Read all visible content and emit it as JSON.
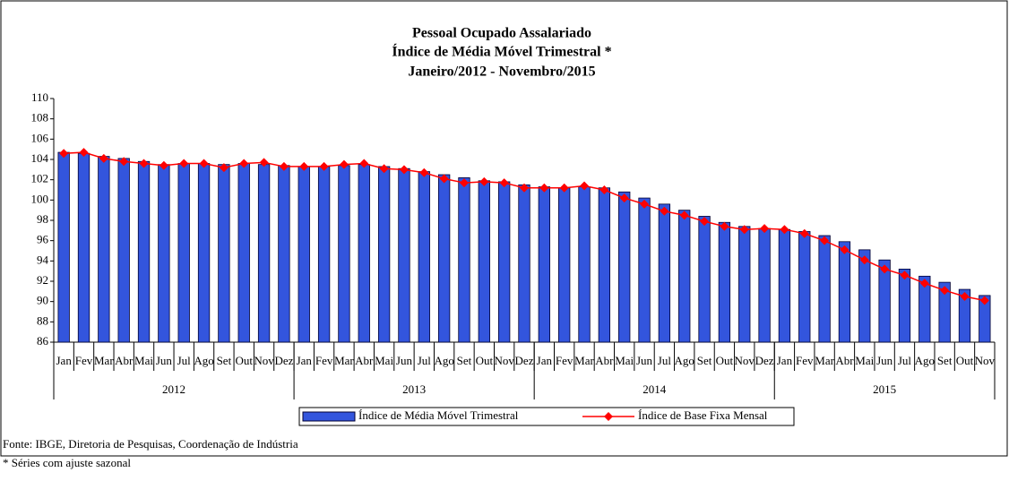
{
  "chart_data": {
    "type": "bar-line",
    "title": [
      "Pessoal Ocupado Assalariado",
      "Índice de Média Móvel Trimestral *",
      "Janeiro/2012 - Novembro/2015"
    ],
    "categories": [
      "Jan",
      "Fev",
      "Mar",
      "Abr",
      "Mai",
      "Jun",
      "Jul",
      "Ago",
      "Set",
      "Out",
      "Nov",
      "Dez",
      "Jan",
      "Fev",
      "Mar",
      "Abr",
      "Mai",
      "Jun",
      "Jul",
      "Ago",
      "Set",
      "Out",
      "Nov",
      "Dez",
      "Jan",
      "Fev",
      "Mar",
      "Abr",
      "Mai",
      "Jun",
      "Jul",
      "Ago",
      "Set",
      "Out",
      "Nov",
      "Dez",
      "Jan",
      "Fev",
      "Mar",
      "Abr",
      "Mai",
      "Jun",
      "Jul",
      "Ago",
      "Set",
      "Out",
      "Nov"
    ],
    "years": [
      "2012",
      "2013",
      "2014",
      "2015"
    ],
    "series": [
      {
        "name": "Índice de Média Móvel Trimestral",
        "type": "bar",
        "color": "#3355dd",
        "values": [
          104.7,
          104.6,
          104.3,
          104.1,
          103.8,
          103.5,
          103.6,
          103.6,
          103.5,
          103.6,
          103.5,
          103.4,
          103.3,
          103.3,
          103.4,
          103.5,
          103.3,
          103.1,
          102.8,
          102.5,
          102.2,
          101.9,
          101.8,
          101.5,
          101.3,
          101.2,
          101.3,
          101.2,
          100.8,
          100.2,
          99.6,
          99.0,
          98.4,
          97.8,
          97.4,
          97.2,
          97.1,
          96.9,
          96.5,
          95.9,
          95.1,
          94.1,
          93.2,
          92.5,
          91.9,
          91.2,
          90.6
        ]
      },
      {
        "name": "Índice de Base Fixa Mensal",
        "type": "line",
        "color": "#ff0000",
        "values": [
          104.6,
          104.7,
          104.1,
          103.8,
          103.6,
          103.4,
          103.6,
          103.6,
          103.2,
          103.6,
          103.7,
          103.3,
          103.3,
          103.3,
          103.5,
          103.6,
          103.1,
          103.0,
          102.7,
          102.1,
          101.7,
          101.8,
          101.7,
          101.2,
          101.2,
          101.2,
          101.4,
          101.0,
          100.2,
          99.6,
          98.9,
          98.5,
          97.9,
          97.4,
          97.1,
          97.2,
          97.1,
          96.7,
          96.0,
          95.1,
          94.1,
          93.2,
          92.6,
          91.8,
          91.1,
          90.5,
          90.1
        ]
      }
    ],
    "ylim": [
      86,
      110
    ],
    "yticks": [
      86,
      88,
      90,
      92,
      94,
      96,
      98,
      100,
      102,
      104,
      106,
      108,
      110
    ],
    "grid": false,
    "notes": [
      "Fonte: IBGE, Diretoria de Pesquisas, Coordenação de Indústria",
      "* Séries com ajuste sazonal"
    ]
  }
}
